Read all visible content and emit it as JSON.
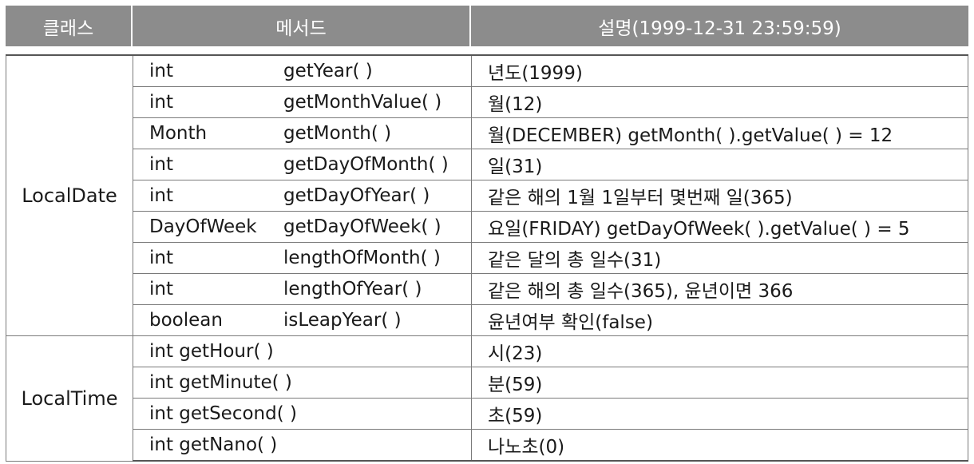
{
  "header": {
    "class_label": "클래스",
    "method_label": "메서드",
    "desc_label": "설명(1999-12-31 23:59:59)"
  },
  "groups": [
    {
      "class": "LocalDate",
      "rows": [
        {
          "type": "int",
          "method": "getYear( )",
          "desc": "년도(1999)"
        },
        {
          "type": "int",
          "method": "getMonthValue( )",
          "desc": "월(12)"
        },
        {
          "type": "Month",
          "method": "getMonth( )",
          "desc": "월(DECEMBER) getMonth( ).getValue( ) = 12"
        },
        {
          "type": "int",
          "method": "getDayOfMonth( )",
          "desc": "일(31)"
        },
        {
          "type": "int",
          "method": "getDayOfYear( )",
          "desc": "같은 해의 1월 1일부터 몇번째 일(365)"
        },
        {
          "type": "DayOfWeek",
          "method": "getDayOfWeek( )",
          "desc": "요일(FRIDAY) getDayOfWeek( ).getValue( ) = 5"
        },
        {
          "type": "int",
          "method": "lengthOfMonth( )",
          "desc": "같은 달의 총 일수(31)"
        },
        {
          "type": "int",
          "method": "lengthOfYear( )",
          "desc": "같은 해의 총 일수(365), 윤년이면 366"
        },
        {
          "type": "boolean",
          "method": "isLeapYear( )",
          "desc": "윤년여부 확인(false)"
        }
      ]
    },
    {
      "class": "LocalTime",
      "rows": [
        {
          "method": "int getHour( )",
          "desc": "시(23)"
        },
        {
          "method": "int getMinute( )",
          "desc": "분(59)"
        },
        {
          "method": "int getSecond( )",
          "desc": "초(59)"
        },
        {
          "method": "int getNano( )",
          "desc": "나노초(0)"
        }
      ]
    }
  ]
}
